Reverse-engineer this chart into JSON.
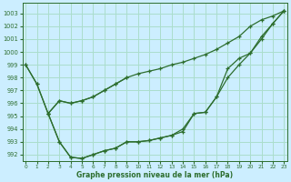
{
  "xlabel": "Graphe pression niveau de la mer (hPa)",
  "background_color": "#cceeff",
  "grid_color": "#aaddcc",
  "line_color": "#2d6e2d",
  "ylim": [
    991.5,
    1003.8
  ],
  "xlim": [
    -0.3,
    23.3
  ],
  "yticks": [
    992,
    993,
    994,
    995,
    996,
    997,
    998,
    999,
    1000,
    1001,
    1002,
    1003
  ],
  "xticks": [
    0,
    1,
    2,
    3,
    4,
    5,
    6,
    7,
    8,
    9,
    10,
    11,
    12,
    13,
    14,
    15,
    16,
    17,
    18,
    19,
    20,
    21,
    22,
    23
  ],
  "series1_x": [
    0,
    1,
    2,
    3,
    4,
    5,
    6,
    7,
    8,
    9,
    10,
    11,
    12,
    13,
    14,
    15,
    16,
    17,
    18,
    19,
    20,
    21,
    22,
    23
  ],
  "series1_y": [
    999.0,
    997.5,
    995.2,
    993.0,
    991.8,
    991.7,
    992.0,
    992.3,
    992.5,
    993.0,
    993.0,
    993.1,
    993.3,
    993.5,
    994.0,
    995.2,
    995.3,
    996.5,
    998.7,
    999.5,
    999.9,
    1001.2,
    1002.2,
    1003.2
  ],
  "series2_x": [
    0,
    1,
    2,
    3,
    4,
    5,
    6,
    7,
    8,
    9,
    10,
    11,
    12,
    13,
    14,
    15,
    16,
    17,
    18,
    19,
    20,
    21,
    22,
    23
  ],
  "series2_y": [
    999.0,
    997.5,
    995.2,
    996.2,
    996.0,
    996.2,
    996.5,
    997.0,
    997.5,
    998.0,
    998.3,
    998.5,
    998.7,
    999.0,
    999.2,
    999.5,
    999.8,
    1000.2,
    1000.7,
    1001.2,
    1002.0,
    1002.5,
    1002.8,
    1003.2
  ],
  "series3_x": [
    2,
    3,
    4,
    5,
    6,
    7,
    8,
    9,
    10,
    11,
    12,
    13,
    14,
    15,
    16,
    17,
    18,
    19,
    20,
    21,
    22,
    23
  ],
  "series3_y": [
    995.2,
    993.0,
    991.8,
    991.7,
    992.0,
    992.3,
    992.5,
    993.0,
    993.0,
    993.1,
    993.3,
    993.5,
    993.8,
    995.2,
    995.3,
    996.5,
    998.0,
    999.0,
    999.9,
    1001.0,
    1002.2,
    1003.2
  ],
  "series4_x": [
    2,
    3,
    4,
    5,
    6,
    7,
    8,
    9
  ],
  "series4_y": [
    995.2,
    996.2,
    996.0,
    996.2,
    996.5,
    997.0,
    997.5,
    998.0
  ]
}
